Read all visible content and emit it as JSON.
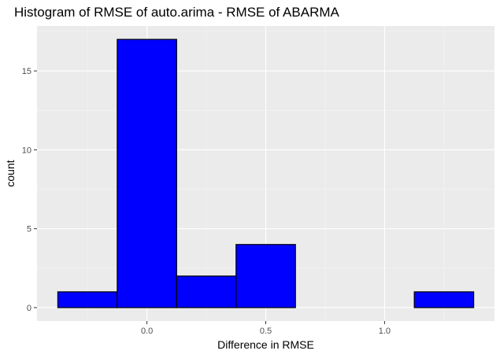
{
  "chart_data": {
    "type": "bar",
    "title": "Histogram of RMSE of auto.arima - RMSE of ABARMA",
    "xlabel": "Difference in RMSE",
    "ylabel": "count",
    "bin_width": 0.25,
    "bins": [
      {
        "x_start": -0.375,
        "x_end": -0.125,
        "count": 1
      },
      {
        "x_start": -0.125,
        "x_end": 0.125,
        "count": 17
      },
      {
        "x_start": 0.125,
        "x_end": 0.375,
        "count": 2
      },
      {
        "x_start": 0.375,
        "x_end": 0.625,
        "count": 4
      },
      {
        "x_start": 0.625,
        "x_end": 0.875,
        "count": 0
      },
      {
        "x_start": 0.875,
        "x_end": 1.125,
        "count": 0
      },
      {
        "x_start": 1.125,
        "x_end": 1.375,
        "count": 1
      }
    ],
    "x_ticks": [
      "0.0",
      "0.5",
      "1.0"
    ],
    "y_ticks": [
      "0",
      "5",
      "10",
      "15"
    ],
    "xlim": [
      -0.4625,
      1.4625
    ],
    "ylim": [
      -0.85,
      17.85
    ],
    "grid": true,
    "legend": "none",
    "colors": {
      "bar_fill": "#0000ff",
      "bar_stroke": "#000000",
      "panel_background": "#ebebeb",
      "grid_major": "#ffffff",
      "grid_minor": "#f5f5f5",
      "tick_text": "#4d4d4d"
    }
  }
}
